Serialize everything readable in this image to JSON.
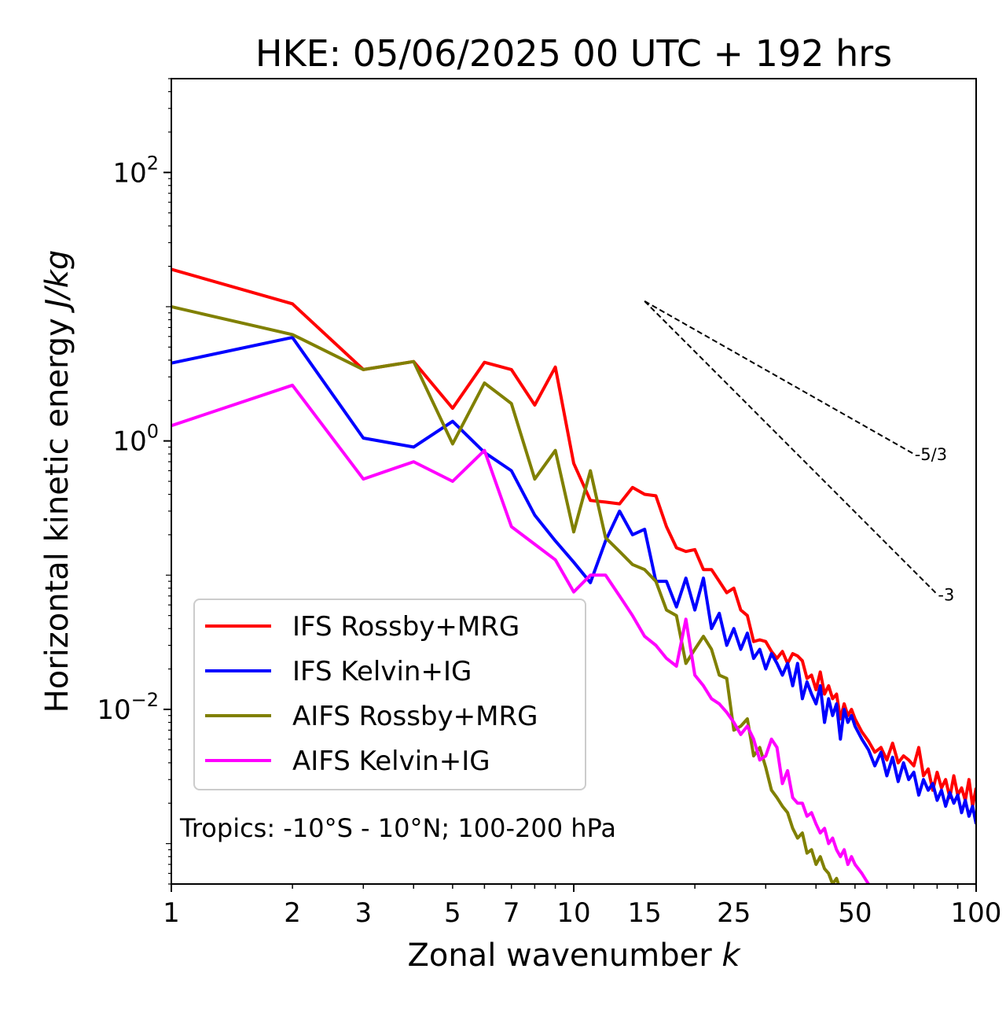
{
  "chart_data": {
    "type": "line",
    "title": "HKE: 05/06/2025 00 UTC + 192 hrs",
    "xlabel": "Zonal wavenumber",
    "xlabel_var": "k",
    "ylabel": "Horizontal kinetic energy",
    "ylabel_unit": "J/kg",
    "xscale": "log",
    "yscale": "log",
    "xlim": [
      1,
      100
    ],
    "ylim": [
      0.0005,
      500
    ],
    "xticks": [
      1,
      2,
      3,
      5,
      7,
      10,
      15,
      25,
      50,
      100
    ],
    "xtick_labels": [
      "1",
      "2",
      "3",
      "5",
      "7",
      "10",
      "15",
      "25",
      "50",
      "100"
    ],
    "yticks": [
      {
        "value": 0.01,
        "base": "10",
        "exp": "−2"
      },
      {
        "value": 1,
        "base": "10",
        "exp": "0"
      },
      {
        "value": 100,
        "base": "10",
        "exp": "2"
      }
    ],
    "grid": false,
    "legend_position": "lower-left",
    "annotation": "Tropics: -10°S - 10°N; 100-200 hPa",
    "reference_lines": [
      {
        "label": "-5/3",
        "slope": -1.6667,
        "x": [
          15,
          70
        ],
        "y": [
          11.0,
          0.8
        ]
      },
      {
        "label": "-3",
        "slope": -3,
        "x": [
          15,
          80
        ],
        "y": [
          11.0,
          0.072
        ]
      }
    ],
    "series": [
      {
        "name": "IFS Rossby+MRG",
        "color": "#ff0000",
        "x": [
          1,
          2,
          3,
          4,
          5,
          6,
          7,
          8,
          9,
          10,
          11,
          12,
          13,
          14,
          15,
          16,
          17,
          18,
          19,
          20,
          21,
          22,
          23,
          24,
          25,
          26,
          27,
          28,
          29,
          30,
          31,
          32,
          33,
          34,
          35,
          36,
          37,
          38,
          39,
          40,
          41,
          42,
          43,
          44,
          45,
          46,
          47,
          48,
          49,
          50,
          52,
          54,
          56,
          58,
          60,
          62,
          64,
          66,
          68,
          70,
          72,
          74,
          76,
          78,
          80,
          82,
          84,
          86,
          88,
          90,
          92,
          94,
          96,
          98,
          100
        ],
        "y": [
          19.0,
          10.5,
          3.4,
          3.9,
          1.75,
          3.85,
          3.4,
          1.85,
          3.55,
          0.68,
          0.36,
          0.35,
          0.34,
          0.45,
          0.4,
          0.39,
          0.23,
          0.16,
          0.15,
          0.155,
          0.11,
          0.11,
          0.09,
          0.074,
          0.08,
          0.055,
          0.05,
          0.032,
          0.033,
          0.032,
          0.027,
          0.024,
          0.027,
          0.022,
          0.026,
          0.025,
          0.023,
          0.017,
          0.018,
          0.014,
          0.019,
          0.013,
          0.015,
          0.012,
          0.013,
          0.0085,
          0.011,
          0.009,
          0.01,
          0.0085,
          0.0068,
          0.0058,
          0.0048,
          0.0052,
          0.0042,
          0.0056,
          0.004,
          0.0045,
          0.0042,
          0.0038,
          0.0052,
          0.0032,
          0.0036,
          0.0025,
          0.0034,
          0.0026,
          0.003,
          0.0022,
          0.0032,
          0.0023,
          0.0026,
          0.0021,
          0.003,
          0.0019,
          0.0026
        ]
      },
      {
        "name": "IFS Kelvin+IG",
        "color": "#0000ff",
        "x": [
          1,
          2,
          3,
          4,
          5,
          6,
          7,
          8,
          9,
          10,
          11,
          12,
          13,
          14,
          15,
          16,
          17,
          18,
          19,
          20,
          21,
          22,
          23,
          24,
          25,
          26,
          27,
          28,
          29,
          30,
          31,
          32,
          33,
          34,
          35,
          36,
          37,
          38,
          39,
          40,
          41,
          42,
          43,
          44,
          45,
          46,
          47,
          48,
          49,
          50,
          52,
          54,
          56,
          58,
          60,
          62,
          64,
          66,
          68,
          70,
          72,
          74,
          76,
          78,
          80,
          82,
          84,
          86,
          88,
          90,
          92,
          94,
          96,
          98,
          100
        ],
        "y": [
          3.8,
          5.9,
          1.05,
          0.9,
          1.4,
          0.82,
          0.6,
          0.28,
          0.18,
          0.125,
          0.088,
          0.18,
          0.3,
          0.2,
          0.22,
          0.09,
          0.09,
          0.058,
          0.095,
          0.055,
          0.095,
          0.04,
          0.052,
          0.03,
          0.04,
          0.028,
          0.037,
          0.024,
          0.028,
          0.02,
          0.026,
          0.022,
          0.018,
          0.022,
          0.015,
          0.022,
          0.012,
          0.016,
          0.013,
          0.011,
          0.015,
          0.008,
          0.012,
          0.009,
          0.011,
          0.006,
          0.01,
          0.008,
          0.009,
          0.0075,
          0.006,
          0.005,
          0.0038,
          0.0048,
          0.0032,
          0.0044,
          0.0029,
          0.004,
          0.003,
          0.0034,
          0.0023,
          0.003,
          0.0025,
          0.0028,
          0.0021,
          0.0025,
          0.0019,
          0.0024,
          0.002,
          0.0023,
          0.0017,
          0.0021,
          0.0016,
          0.0019,
          0.0014
        ]
      },
      {
        "name": "AIFS Rossby+MRG",
        "color": "#808000",
        "x": [
          1,
          2,
          3,
          4,
          5,
          6,
          7,
          8,
          9,
          10,
          11,
          12,
          13,
          14,
          15,
          16,
          17,
          18,
          19,
          20,
          21,
          22,
          23,
          24,
          25,
          26,
          27,
          28,
          29,
          30,
          31,
          32,
          33,
          34,
          35,
          36,
          37,
          38,
          39,
          40,
          41,
          42,
          43,
          44,
          45,
          46,
          47,
          48,
          49,
          50
        ],
        "y": [
          10.0,
          6.2,
          3.4,
          3.9,
          0.95,
          2.7,
          1.9,
          0.52,
          0.85,
          0.21,
          0.6,
          0.19,
          0.15,
          0.12,
          0.11,
          0.09,
          0.055,
          0.05,
          0.022,
          0.028,
          0.035,
          0.028,
          0.018,
          0.017,
          0.007,
          0.0075,
          0.0085,
          0.0045,
          0.0052,
          0.0037,
          0.0025,
          0.0022,
          0.0019,
          0.0017,
          0.0013,
          0.0011,
          0.0012,
          0.00085,
          0.0009,
          0.0007,
          0.0008,
          0.00065,
          0.0006,
          0.0005,
          0.00055,
          0.00045,
          0.0004,
          0.0004,
          0.00035,
          0.0003
        ]
      },
      {
        "name": "AIFS Kelvin+IG",
        "color": "#ff00ff",
        "x": [
          1,
          2,
          3,
          4,
          5,
          6,
          7,
          8,
          9,
          10,
          11,
          12,
          13,
          14,
          15,
          16,
          17,
          18,
          19,
          20,
          21,
          22,
          23,
          24,
          25,
          26,
          27,
          28,
          29,
          30,
          31,
          32,
          33,
          34,
          35,
          36,
          37,
          38,
          39,
          40,
          41,
          42,
          43,
          44,
          45,
          46,
          47,
          48,
          49,
          50,
          52,
          54,
          56
        ],
        "y": [
          1.3,
          2.6,
          0.52,
          0.7,
          0.5,
          0.85,
          0.23,
          0.17,
          0.13,
          0.075,
          0.1,
          0.1,
          0.07,
          0.05,
          0.035,
          0.03,
          0.024,
          0.021,
          0.047,
          0.018,
          0.015,
          0.012,
          0.011,
          0.0095,
          0.008,
          0.0065,
          0.0075,
          0.006,
          0.0042,
          0.0045,
          0.006,
          0.0052,
          0.0028,
          0.0035,
          0.0022,
          0.002,
          0.002,
          0.0016,
          0.0017,
          0.0014,
          0.0012,
          0.0013,
          0.001,
          0.0011,
          0.0009,
          0.0008,
          0.0009,
          0.0007,
          0.0008,
          0.0007,
          0.0006,
          0.0005,
          0.00045
        ]
      }
    ]
  }
}
